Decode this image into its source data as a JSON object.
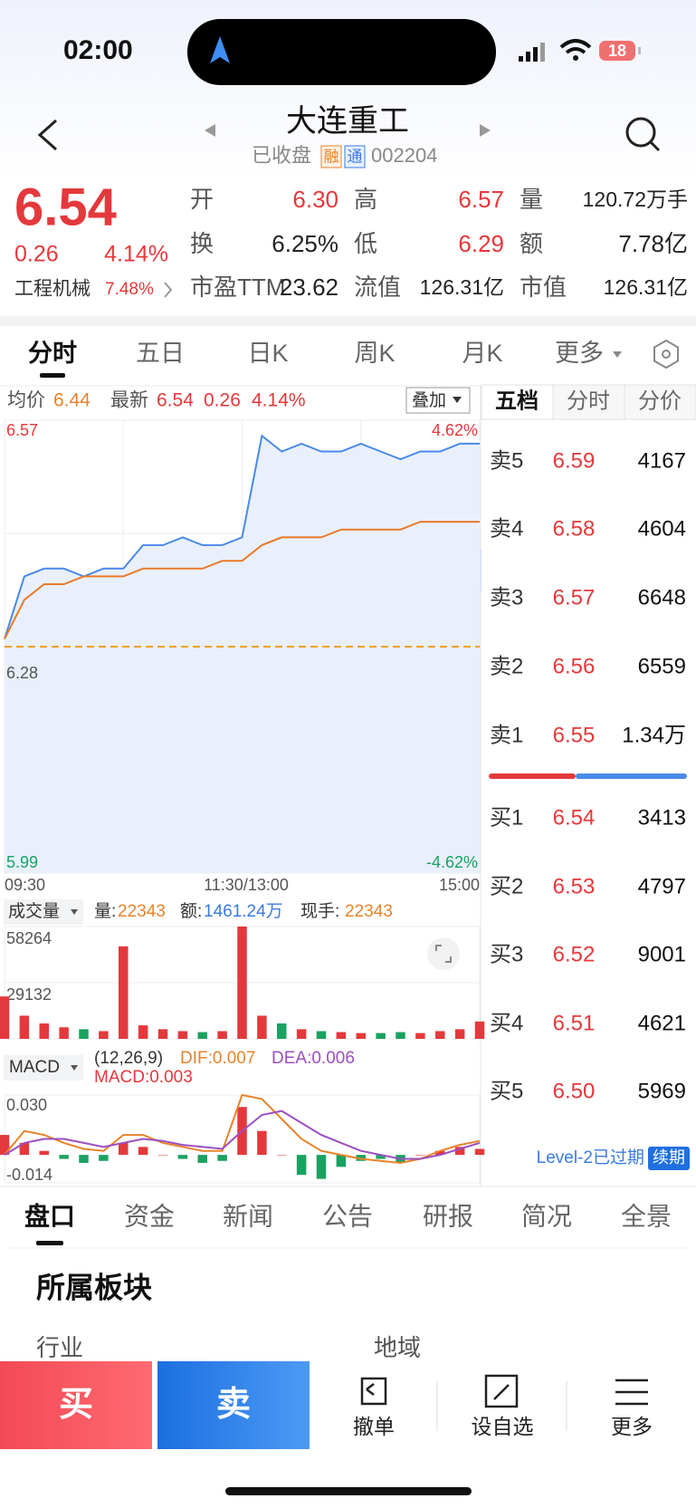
{
  "status_bar": {
    "time": "02:00",
    "battery": "18"
  },
  "header": {
    "title": "大连重工",
    "status": "已收盘",
    "tags": [
      "融",
      "通"
    ],
    "code": "002204"
  },
  "quote": {
    "price": "6.54",
    "change": "0.26",
    "change_pct": "4.14%",
    "sector": "工程机械",
    "sector_pct": "7.48%",
    "stats": [
      {
        "label": "开",
        "value": "6.30",
        "color": "#e4393c"
      },
      {
        "label": "高",
        "value": "6.57",
        "color": "#e4393c"
      },
      {
        "label": "量",
        "value": "120.72万手",
        "color": "#222"
      },
      {
        "label": "换",
        "value": "6.25%",
        "color": "#222"
      },
      {
        "label": "低",
        "value": "6.29",
        "color": "#e4393c"
      },
      {
        "label": "额",
        "value": "7.78亿",
        "color": "#222"
      },
      {
        "label": "市盈TTM",
        "value": "23.62",
        "color": "#222"
      },
      {
        "label": "流值",
        "value": "126.31亿",
        "color": "#222"
      },
      {
        "label": "市值",
        "value": "126.31亿",
        "color": "#222"
      }
    ]
  },
  "tabs": [
    "分时",
    "五日",
    "日K",
    "周K",
    "月K",
    "更多"
  ],
  "intraday": {
    "avg_label": "均价",
    "avg_value": "6.44",
    "latest_label": "最新",
    "latest": "6.54",
    "latest_change": "0.26",
    "latest_pct": "4.14%",
    "overlay": "叠加",
    "ylim": [
      5.99,
      6.57
    ],
    "yticks": [
      5.99,
      6.28,
      6.57
    ],
    "top_pct": "4.62%",
    "bottom_pct": "-4.62%",
    "prev_close": 6.28,
    "time_labels": [
      "09:30",
      "11:30/13:00",
      "15:00"
    ],
    "price": [
      6.29,
      6.37,
      6.38,
      6.38,
      6.37,
      6.38,
      6.38,
      6.41,
      6.41,
      6.42,
      6.41,
      6.41,
      6.42,
      6.55,
      6.53,
      6.54,
      6.53,
      6.53,
      6.54,
      6.53,
      6.52,
      6.53,
      6.53,
      6.54,
      6.54
    ],
    "avg": [
      6.29,
      6.34,
      6.36,
      6.36,
      6.37,
      6.37,
      6.37,
      6.38,
      6.38,
      6.38,
      6.38,
      6.39,
      6.39,
      6.41,
      6.42,
      6.42,
      6.42,
      6.43,
      6.43,
      6.43,
      6.43,
      6.44,
      6.44,
      6.44,
      6.44
    ]
  },
  "volume": {
    "selector": "成交量",
    "vol_label": "量:",
    "vol": "22343",
    "amt_label": "额:",
    "amt": "1461.24万",
    "hand_label": "现手:",
    "hand": "22343",
    "ylim": [
      0,
      58264
    ],
    "yticks": [
      29132,
      58264
    ],
    "values": [
      22000,
      12000,
      8000,
      6000,
      5000,
      4000,
      48000,
      7000,
      5000,
      4000,
      3500,
      4000,
      58264,
      12000,
      8000,
      5000,
      4000,
      3500,
      3000,
      3000,
      3500,
      3000,
      4000,
      5000,
      9000
    ]
  },
  "macd": {
    "selector": "MACD",
    "params": "(12,26,9)",
    "dif_label": "DIF:0.007",
    "dea_label": "DEA:0.006",
    "macd_label": "MACD:0.003",
    "ylim": [
      -0.014,
      0.03
    ],
    "yticks": [
      {
        "value": 0.03,
        "label": "0.030"
      },
      -0.014
    ],
    "hist": [
      0.01,
      0.006,
      0.002,
      -0.002,
      -0.004,
      -0.003,
      0.006,
      0.004,
      0.0,
      -0.002,
      -0.004,
      -0.003,
      0.024,
      0.012,
      0.0,
      -0.01,
      -0.012,
      -0.006,
      -0.003,
      -0.002,
      -0.004,
      0.0,
      0.002,
      0.004,
      0.003
    ],
    "dif": [
      0.0,
      0.012,
      0.01,
      0.006,
      0.003,
      0.002,
      0.01,
      0.01,
      0.006,
      0.004,
      0.002,
      0.002,
      0.03,
      0.028,
      0.018,
      0.008,
      0.002,
      0.0,
      -0.002,
      -0.003,
      -0.004,
      -0.002,
      0.002,
      0.005,
      0.007
    ],
    "dea": [
      0.0,
      0.006,
      0.008,
      0.008,
      0.006,
      0.004,
      0.006,
      0.008,
      0.007,
      0.005,
      0.004,
      0.003,
      0.012,
      0.02,
      0.022,
      0.016,
      0.01,
      0.006,
      0.002,
      0.0,
      -0.002,
      -0.002,
      0.0,
      0.003,
      0.006
    ]
  },
  "book": {
    "tabs": [
      "五档",
      "分时",
      "分价"
    ],
    "asks": [
      {
        "label": "卖5",
        "price": "6.59",
        "vol": "4167"
      },
      {
        "label": "卖4",
        "price": "6.58",
        "vol": "4604"
      },
      {
        "label": "卖3",
        "price": "6.57",
        "vol": "6648"
      },
      {
        "label": "卖2",
        "price": "6.56",
        "vol": "6559"
      },
      {
        "label": "卖1",
        "price": "6.55",
        "vol": "1.34万"
      }
    ],
    "bids": [
      {
        "label": "买1",
        "price": "6.54",
        "vol": "3413"
      },
      {
        "label": "买2",
        "price": "6.53",
        "vol": "4797"
      },
      {
        "label": "买3",
        "price": "6.52",
        "vol": "9001"
      },
      {
        "label": "买4",
        "price": "6.51",
        "vol": "4621"
      },
      {
        "label": "买5",
        "price": "6.50",
        "vol": "5969"
      }
    ],
    "level2": "Level-2已过期",
    "renew": "续期"
  },
  "bottom_tabs": [
    "盘口",
    "资金",
    "新闻",
    "公告",
    "研报",
    "简况",
    "全景"
  ],
  "section": {
    "title": "所属板块",
    "industry": "行业",
    "region": "地域"
  },
  "actions": {
    "buy": "买",
    "sell": "卖",
    "tools": [
      "撤单",
      "设自选",
      "更多"
    ]
  }
}
